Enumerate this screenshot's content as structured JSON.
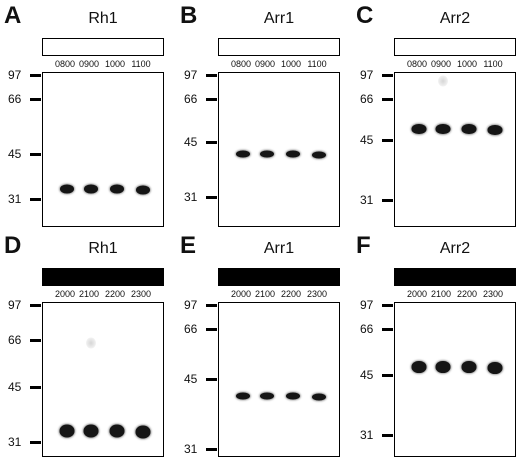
{
  "panels": [
    {
      "letter": "A",
      "protein": "Rh1",
      "bar": "light",
      "times": [
        "0800",
        "0900",
        "1000",
        "1100"
      ],
      "markers": [
        "97",
        "66",
        "45",
        "31"
      ],
      "band_level": 0.76,
      "faint_lane": null
    },
    {
      "letter": "B",
      "protein": "Arr1",
      "bar": "light",
      "times": [
        "0800",
        "0900",
        "1000",
        "1100"
      ],
      "markers": [
        "97",
        "66",
        "45",
        "31"
      ],
      "band_level": 0.53,
      "faint_lane": null
    },
    {
      "letter": "C",
      "protein": "Arr2",
      "bar": "light",
      "times": [
        "0800",
        "0900",
        "1000",
        "1100"
      ],
      "markers": [
        "97",
        "66",
        "45",
        "31"
      ],
      "band_level": 0.37,
      "faint_lane": 1
    },
    {
      "letter": "D",
      "protein": "Rh1",
      "bar": "dark",
      "times": [
        "2000",
        "2100",
        "2200",
        "2300"
      ],
      "markers": [
        "97",
        "66",
        "45",
        "31"
      ],
      "band_level": 0.84,
      "faint_lane": 1
    },
    {
      "letter": "E",
      "protein": "Arr1",
      "bar": "dark",
      "times": [
        "2000",
        "2100",
        "2200",
        "2300"
      ],
      "markers": [
        "97",
        "66",
        "45",
        "31"
      ],
      "band_level": 0.61,
      "faint_lane": null
    },
    {
      "letter": "F",
      "protein": "Arr2",
      "bar": "dark",
      "times": [
        "2000",
        "2100",
        "2200",
        "2300"
      ],
      "markers": [
        "97",
        "66",
        "45",
        "31"
      ],
      "band_level": 0.42,
      "faint_lane": null
    }
  ]
}
